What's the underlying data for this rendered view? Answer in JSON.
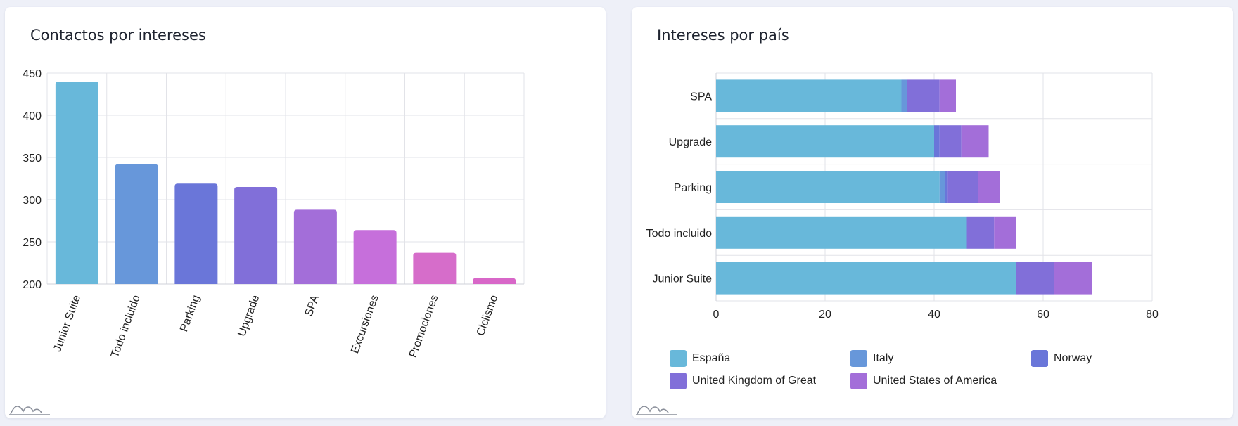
{
  "panels": {
    "left": {
      "title": "Contactos por intereses"
    },
    "right": {
      "title": "Intereses por país"
    }
  },
  "chart_data": [
    {
      "type": "bar",
      "title": "Contactos por intereses",
      "categories": [
        "Junior Suite",
        "Todo incluido",
        "Parking",
        "Upgrade",
        "SPA",
        "Excursiones",
        "Promociones",
        "Ciclismo"
      ],
      "values": [
        440,
        342,
        319,
        315,
        288,
        264,
        237,
        207
      ],
      "colors": [
        "#68b8da",
        "#6797da",
        "#6a76d9",
        "#816fd9",
        "#a36ed9",
        "#c66fdb",
        "#d66dca",
        "#d867c8"
      ],
      "ylim": [
        200,
        450
      ],
      "yticks": [
        200,
        250,
        300,
        350,
        400,
        450
      ],
      "grid": true
    },
    {
      "type": "bar",
      "orientation": "horizontal",
      "stacked": true,
      "title": "Intereses por país",
      "categories": [
        "SPA",
        "Upgrade",
        "Parking",
        "Todo incluido",
        "Junior Suite"
      ],
      "series": [
        {
          "name": "España",
          "color": "#68b8da",
          "values": [
            34,
            40,
            41,
            46,
            55
          ]
        },
        {
          "name": "Italy",
          "color": "#6797da",
          "values": [
            1,
            0,
            1,
            0,
            0
          ]
        },
        {
          "name": "Norway",
          "color": "#6a76d9",
          "values": [
            0,
            1,
            0.5,
            0,
            0
          ]
        },
        {
          "name": "United Kingdom of Great",
          "color": "#816fd9",
          "values": [
            6,
            4,
            5.5,
            5,
            7
          ]
        },
        {
          "name": "United States of America",
          "color": "#a36ed9",
          "values": [
            3,
            5,
            4,
            4,
            7
          ]
        }
      ],
      "xlim": [
        0,
        80
      ],
      "xticks": [
        0,
        20,
        40,
        60,
        80
      ],
      "grid": true,
      "legend": "bottom"
    }
  ]
}
